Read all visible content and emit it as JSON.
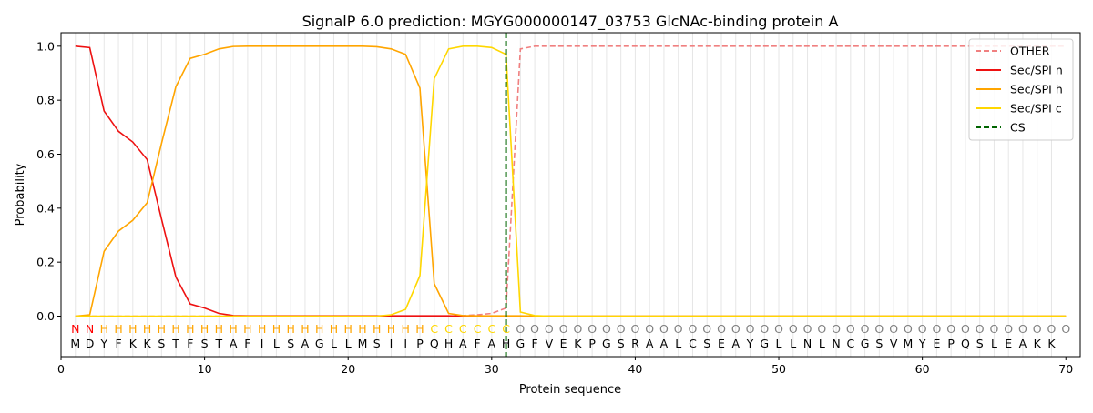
{
  "chart_data": {
    "type": "line",
    "title": "SignalP 6.0 prediction: MGYG000000147_03753 GlcNAc-binding protein A",
    "xlabel": "Protein sequence",
    "ylabel": "Probability",
    "xlim": [
      0,
      71
    ],
    "ylim": [
      -0.15,
      1.05
    ],
    "xticks": [
      0,
      10,
      20,
      30,
      40,
      50,
      60,
      70
    ],
    "yticks": [
      0.0,
      0.2,
      0.4,
      0.6,
      0.8,
      1.0
    ],
    "xtick_labels": [
      "0",
      "10",
      "20",
      "30",
      "40",
      "50",
      "60",
      "70"
    ],
    "ytick_labels": [
      "0.0",
      "0.2",
      "0.4",
      "0.6",
      "0.8",
      "1.0"
    ],
    "grid": "vertical lines at each residue",
    "legend_position": "top-right",
    "sequence": [
      "M",
      "D",
      "Y",
      "F",
      "K",
      "K",
      "S",
      "T",
      "F",
      "S",
      "T",
      "A",
      "F",
      "I",
      "L",
      "S",
      "A",
      "G",
      "L",
      "L",
      "M",
      "S",
      "I",
      "I",
      "P",
      "Q",
      "H",
      "A",
      "F",
      "A",
      "H",
      "G",
      "F",
      "V",
      "E",
      "K",
      "P",
      "G",
      "S",
      "R",
      "A",
      "A",
      "L",
      "C",
      "S",
      "E",
      "A",
      "Y",
      "G",
      "L",
      "L",
      "N",
      "L",
      "N",
      "C",
      "G",
      "S",
      "V",
      "M",
      "Y",
      "E",
      "P",
      "Q",
      "S",
      "L",
      "E",
      "A",
      "K",
      "K"
    ],
    "region_labels": [
      "N",
      "N",
      "H",
      "H",
      "H",
      "H",
      "H",
      "H",
      "H",
      "H",
      "H",
      "H",
      "H",
      "H",
      "H",
      "H",
      "H",
      "H",
      "H",
      "H",
      "H",
      "H",
      "H",
      "H",
      "H",
      "C",
      "C",
      "C",
      "C",
      "C",
      "C",
      "O",
      "O",
      "O",
      "O",
      "O",
      "O",
      "O",
      "O",
      "O",
      "O",
      "O",
      "O",
      "O",
      "O",
      "O",
      "O",
      "O",
      "O",
      "O",
      "O",
      "O",
      "O",
      "O",
      "O",
      "O",
      "O",
      "O",
      "O",
      "O",
      "O",
      "O",
      "O",
      "O",
      "O",
      "O",
      "O",
      "O",
      "O",
      "O"
    ],
    "region_colors": {
      "N": "#ff0000",
      "H": "#ffa500",
      "C": "#ffd700",
      "O": "#808080"
    },
    "series": [
      {
        "name": "OTHER",
        "color": "#f08080",
        "dash": "dashed",
        "values": [
          0,
          0,
          0,
          0,
          0,
          0,
          0,
          0,
          0,
          0,
          0,
          0,
          0,
          0,
          0,
          0,
          0,
          0,
          0,
          0,
          0,
          0,
          0,
          0,
          0,
          0,
          0,
          0.002,
          0.005,
          0.01,
          0.03,
          0.99,
          1,
          1,
          1,
          1,
          1,
          1,
          1,
          1,
          1,
          1,
          1,
          1,
          1,
          1,
          1,
          1,
          1,
          1,
          1,
          1,
          1,
          1,
          1,
          1,
          1,
          1,
          1,
          1,
          1,
          1,
          1,
          1,
          1,
          1,
          1,
          1,
          1,
          1
        ]
      },
      {
        "name": "Sec/SPI n",
        "color": "#ee1111",
        "dash": "solid",
        "values": [
          1.0,
          0.995,
          0.76,
          0.685,
          0.645,
          0.58,
          0.36,
          0.145,
          0.045,
          0.03,
          0.01,
          0.002,
          0.001,
          0.001,
          0.001,
          0.001,
          0.001,
          0.001,
          0.001,
          0.001,
          0.001,
          0.001,
          0.001,
          0.001,
          0.001,
          0.001,
          0.001,
          0,
          0,
          0,
          0,
          0,
          0,
          0,
          0,
          0,
          0,
          0,
          0,
          0,
          0,
          0,
          0,
          0,
          0,
          0,
          0,
          0,
          0,
          0,
          0,
          0,
          0,
          0,
          0,
          0,
          0,
          0,
          0,
          0,
          0,
          0,
          0,
          0,
          0,
          0,
          0,
          0,
          0,
          0
        ]
      },
      {
        "name": "Sec/SPI h",
        "color": "#ffa500",
        "dash": "solid",
        "values": [
          0.0,
          0.005,
          0.24,
          0.315,
          0.355,
          0.42,
          0.64,
          0.85,
          0.955,
          0.97,
          0.99,
          0.999,
          1,
          1,
          1,
          1,
          1,
          1,
          1,
          1,
          1,
          0.998,
          0.99,
          0.97,
          0.845,
          0.12,
          0.01,
          0.002,
          0.001,
          0.001,
          0.001,
          0.001,
          0,
          0,
          0,
          0,
          0,
          0,
          0,
          0,
          0,
          0,
          0,
          0,
          0,
          0,
          0,
          0,
          0,
          0,
          0,
          0,
          0,
          0,
          0,
          0,
          0,
          0,
          0,
          0,
          0,
          0,
          0,
          0,
          0,
          0,
          0,
          0,
          0,
          0
        ]
      },
      {
        "name": "Sec/SPI c",
        "color": "#ffd700",
        "dash": "solid",
        "values": [
          0,
          0,
          0,
          0,
          0,
          0,
          0,
          0,
          0,
          0,
          0,
          0,
          0,
          0,
          0,
          0,
          0,
          0,
          0,
          0,
          0,
          0,
          0.005,
          0.025,
          0.15,
          0.88,
          0.99,
          1,
          1,
          0.995,
          0.97,
          0.015,
          0.002,
          0,
          0,
          0,
          0,
          0,
          0,
          0,
          0,
          0,
          0,
          0,
          0,
          0,
          0,
          0,
          0,
          0,
          0,
          0,
          0,
          0,
          0,
          0,
          0,
          0,
          0,
          0,
          0,
          0,
          0,
          0,
          0,
          0,
          0,
          0,
          0,
          0
        ]
      },
      {
        "name": "CS",
        "color": "#006400",
        "dash": "dashed",
        "type": "vline",
        "x": 31
      }
    ]
  }
}
